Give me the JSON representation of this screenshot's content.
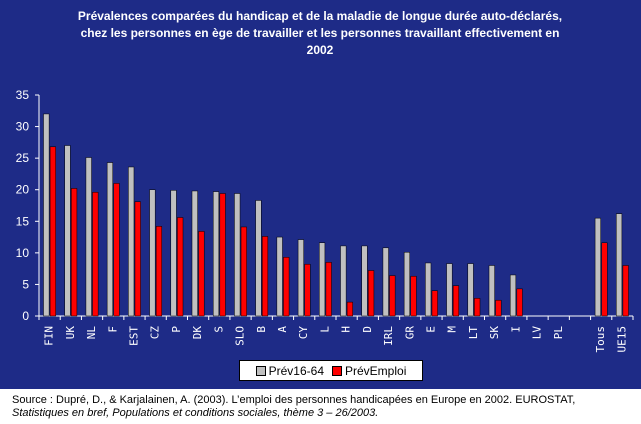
{
  "chart_data": {
    "type": "bar",
    "title": [
      "Prévalences comparées du handicap et de la maladie de longue durée auto-déclarés,",
      "chez les personnes en ège de travailler et les personnes travaillant effectivement en",
      "2002"
    ],
    "xlabel": "",
    "ylabel": "",
    "ylim": [
      0,
      35
    ],
    "yticks": [
      0,
      5,
      10,
      15,
      20,
      25,
      30,
      35
    ],
    "grid": false,
    "legend_position": "bottom",
    "categories": [
      "FIN",
      "UK",
      "NL",
      "F",
      "EST",
      "CZ",
      "P",
      "DK",
      "S",
      "SLO",
      "B",
      "A",
      "CY",
      "L",
      "H",
      "D",
      "IRL",
      "GR",
      "E",
      "M",
      "LT",
      "SK",
      "I",
      "LV",
      "PL",
      "",
      "Tous",
      "UE15"
    ],
    "series": [
      {
        "name": "Prév16-64",
        "color": "#c0c0c0",
        "values": [
          32.0,
          27.0,
          25.1,
          24.3,
          23.6,
          20.0,
          19.9,
          19.8,
          19.7,
          19.4,
          18.3,
          12.5,
          12.1,
          11.6,
          11.1,
          11.1,
          10.8,
          10.1,
          8.4,
          8.3,
          8.3,
          8.0,
          6.5,
          null,
          null,
          null,
          15.5,
          16.2
        ]
      },
      {
        "name": "PrévEmploi",
        "color": "#ff0000",
        "values": [
          26.8,
          20.2,
          19.6,
          21.0,
          18.1,
          14.2,
          15.6,
          13.4,
          19.4,
          14.1,
          12.6,
          9.3,
          8.2,
          8.5,
          2.2,
          7.2,
          6.4,
          6.3,
          4.0,
          4.8,
          2.8,
          2.5,
          4.3,
          null,
          null,
          null,
          11.6,
          8.0
        ]
      }
    ]
  },
  "source": {
    "line1": "Source : Dupré, D., & Karjalainen, A. (2003). L’emploi des personnes handicapées en Europe en 2002. EUROSTAT,",
    "line2": "Statistiques en bref, Populations et conditions sociales, thème 3 – 26/2003."
  }
}
